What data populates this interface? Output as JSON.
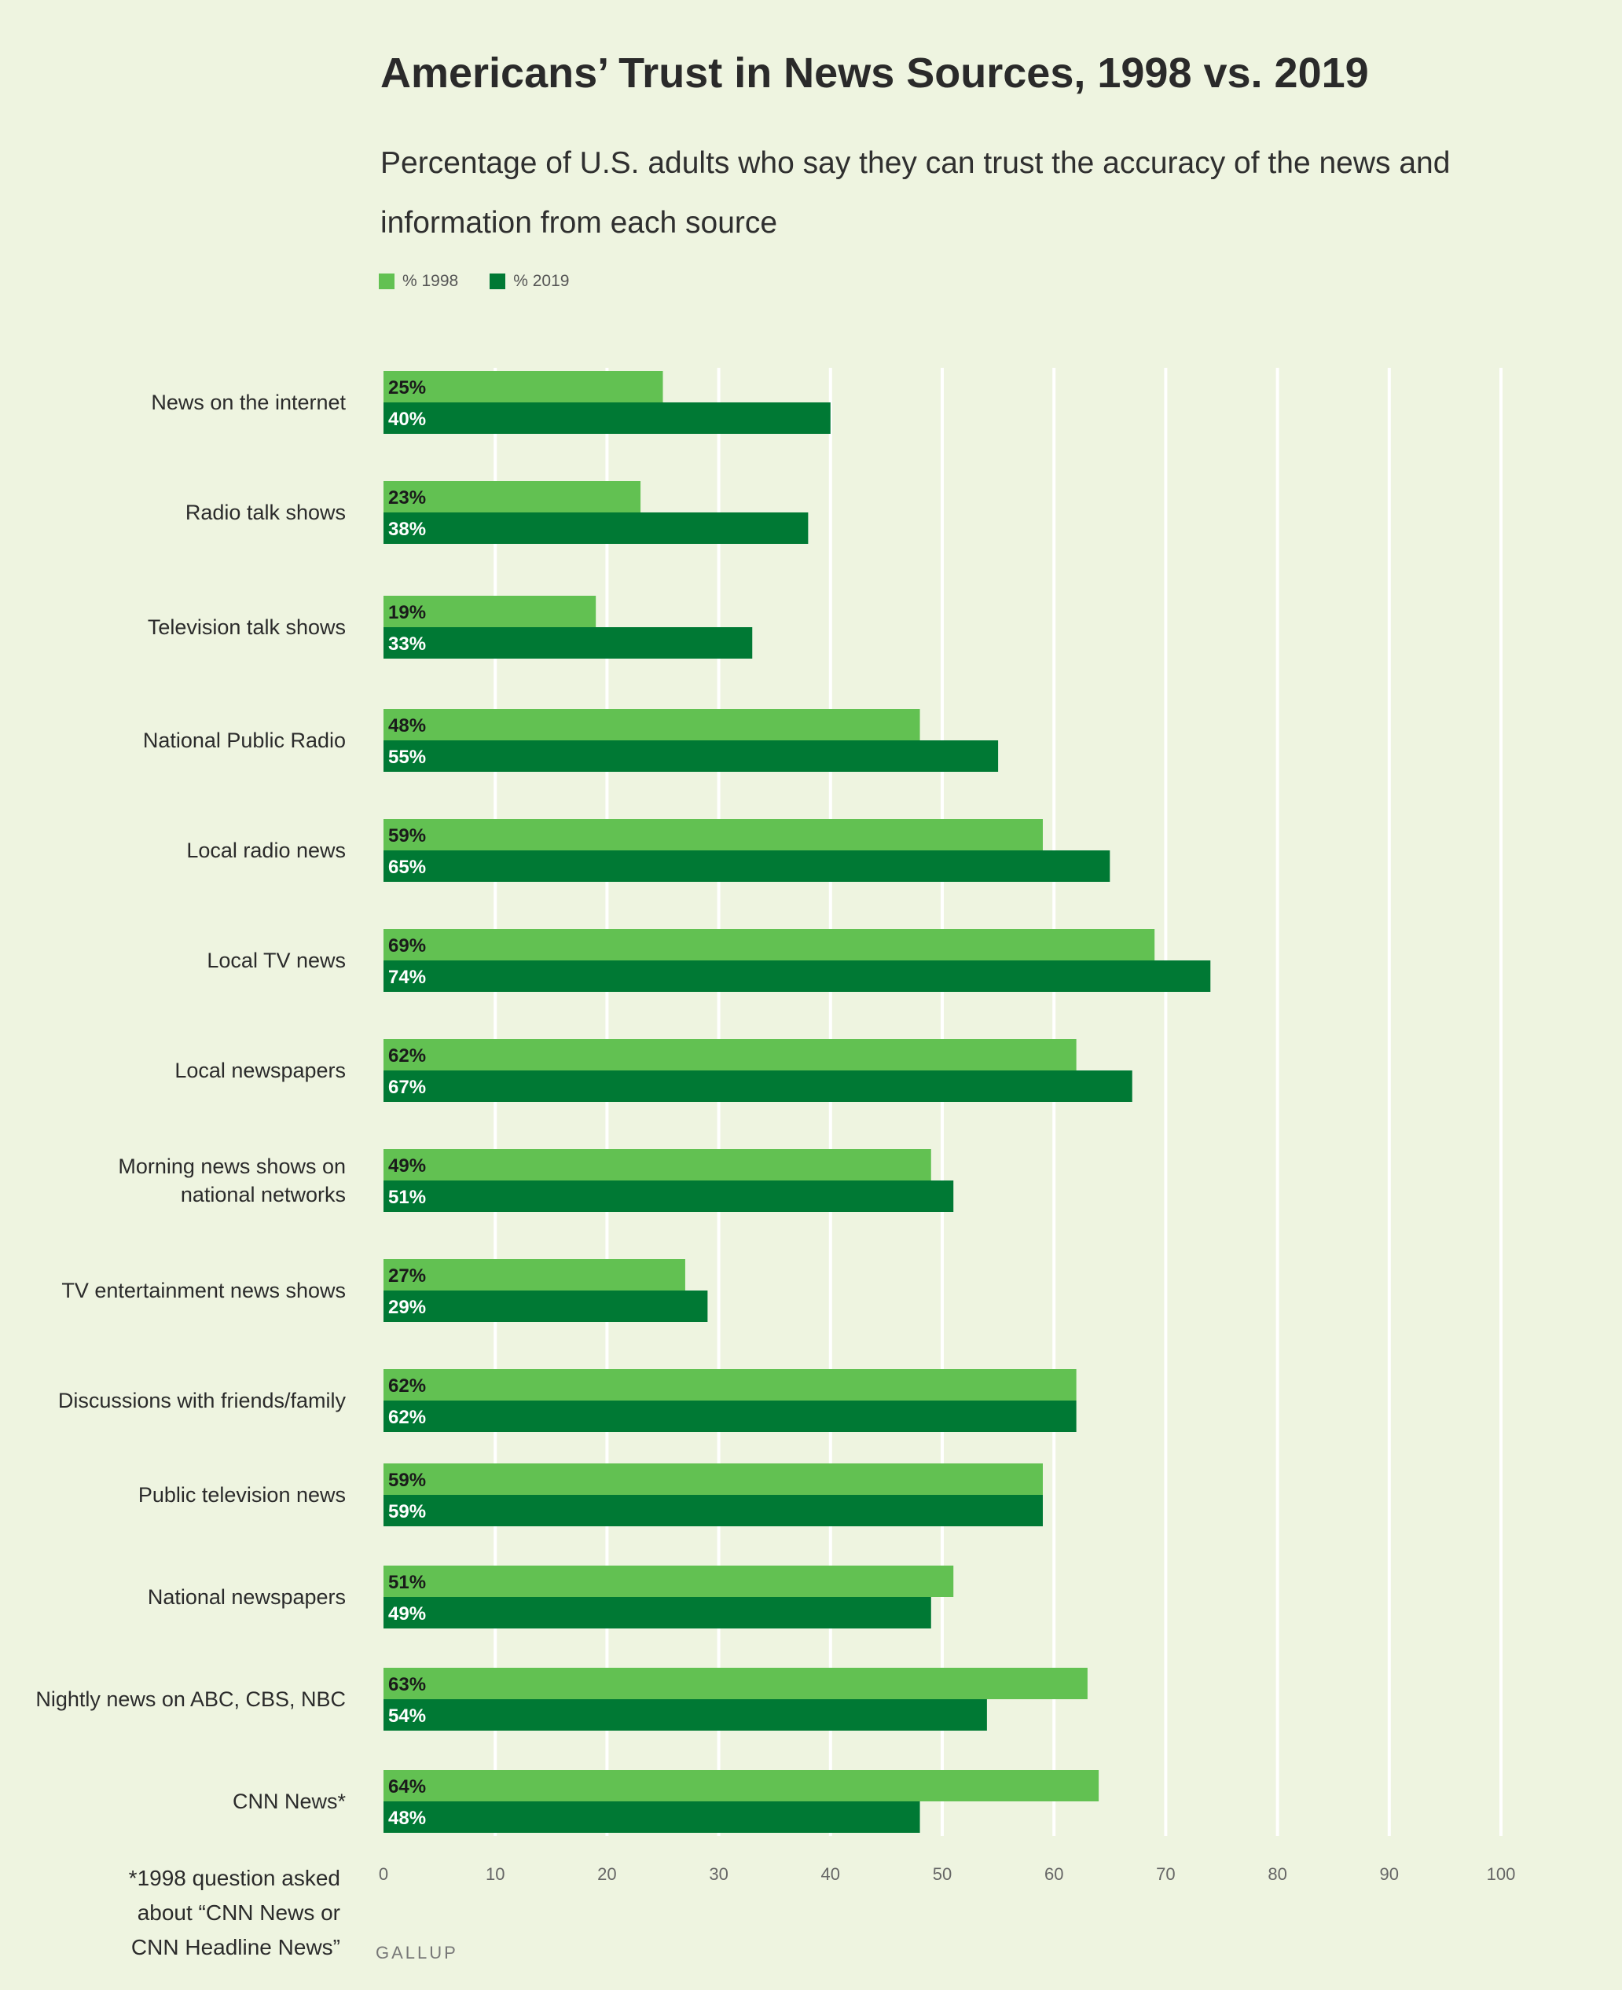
{
  "chart_data": {
    "type": "bar",
    "orientation": "horizontal",
    "title": "Americans’ Trust in News Sources, 1998 vs. 2019",
    "subtitle": "Percentage of U.S. adults who say they can trust the accuracy of the news and information from each source",
    "xlim": [
      0,
      100
    ],
    "xticks": [
      0,
      10,
      20,
      30,
      40,
      50,
      60,
      70,
      80,
      90,
      100
    ],
    "grid": true,
    "legend_position": "top-left",
    "categories": [
      "News on the internet",
      "Radio talk shows",
      "Television talk shows",
      "National Public Radio",
      "Local radio news",
      "Local TV news",
      "Local newspapers",
      "Morning news shows on\nnational networks",
      "TV entertainment news shows",
      "Discussions with friends/family",
      "Public television news",
      "National newspapers",
      "Nightly news on ABC, CBS, NBC",
      "CNN News*"
    ],
    "series": [
      {
        "name": "% 1998",
        "color": "#62c152",
        "label_color": "#1a1a1a",
        "values": [
          25,
          23,
          19,
          48,
          59,
          69,
          62,
          49,
          27,
          62,
          59,
          51,
          63,
          64
        ],
        "labels": [
          "25%",
          "23%",
          "19%",
          "48%",
          "59%",
          "69%",
          "62%",
          "49%",
          "27%",
          "62%",
          "59%",
          "51%",
          "63%",
          "64%"
        ]
      },
      {
        "name": "% 2019",
        "color": "#007934",
        "label_color": "#ffffff",
        "values": [
          40,
          38,
          33,
          55,
          65,
          74,
          67,
          51,
          29,
          62,
          59,
          49,
          54,
          48
        ],
        "labels": [
          "40%",
          "38%",
          "33%",
          "55%",
          "65%",
          "74%",
          "67%",
          "51%",
          "29%",
          "62%",
          "59%",
          "49%",
          "54%",
          "48%"
        ]
      }
    ]
  },
  "footnote": "*1998 question asked\nabout “CNN News or\nCNN Headline News”",
  "source": "GALLUP"
}
